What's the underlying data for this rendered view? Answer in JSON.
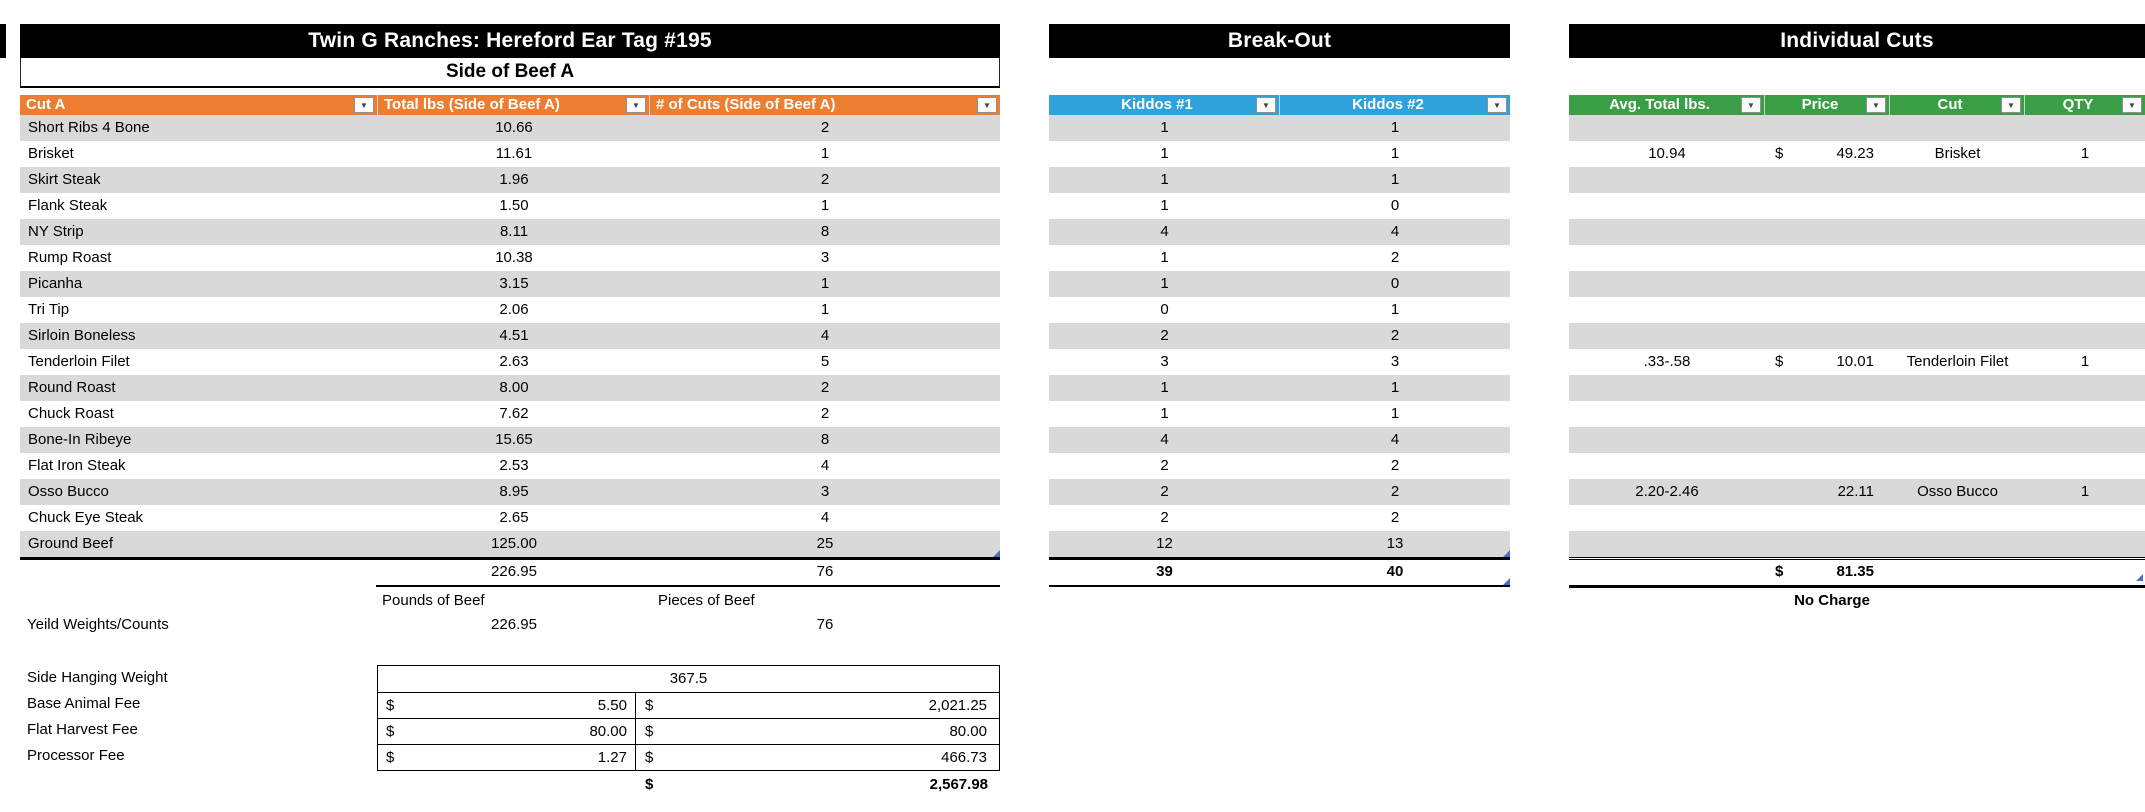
{
  "colors": {
    "header_orange": "#ED7D31",
    "header_blue": "#2FA2DC",
    "header_green": "#3B9E46",
    "stripe": "#D9D9D9",
    "title_bg": "#000000",
    "handle_blue": "#4472C4"
  },
  "icons": {
    "filter_dropdown": "▼"
  },
  "side_a": {
    "title": "Twin G Ranches: Hereford Ear Tag #195",
    "subtitle": "Side of Beef A",
    "columns": [
      "Cut A",
      "Total lbs (Side of Beef A)",
      "# of Cuts (Side of Beef A)"
    ],
    "rows": [
      {
        "cut": "Short Ribs 4 Bone",
        "lbs": "10.66",
        "count": "2"
      },
      {
        "cut": "Brisket",
        "lbs": "11.61",
        "count": "1"
      },
      {
        "cut": "Skirt Steak",
        "lbs": "1.96",
        "count": "2"
      },
      {
        "cut": "Flank Steak",
        "lbs": "1.50",
        "count": "1"
      },
      {
        "cut": "NY Strip",
        "lbs": "8.11",
        "count": "8"
      },
      {
        "cut": "Rump Roast",
        "lbs": "10.38",
        "count": "3"
      },
      {
        "cut": "Picanha",
        "lbs": "3.15",
        "count": "1"
      },
      {
        "cut": "Tri Tip",
        "lbs": "2.06",
        "count": "1"
      },
      {
        "cut": "Sirloin Boneless",
        "lbs": "4.51",
        "count": "4"
      },
      {
        "cut": "Tenderloin Filet",
        "lbs": "2.63",
        "count": "5"
      },
      {
        "cut": "Round Roast",
        "lbs": "8.00",
        "count": "2"
      },
      {
        "cut": "Chuck Roast",
        "lbs": "7.62",
        "count": "2"
      },
      {
        "cut": "Bone-In Ribeye",
        "lbs": "15.65",
        "count": "8"
      },
      {
        "cut": "Flat Iron Steak",
        "lbs": "2.53",
        "count": "4"
      },
      {
        "cut": "Osso Bucco",
        "lbs": "8.95",
        "count": "3"
      },
      {
        "cut": "Chuck Eye Steak",
        "lbs": "2.65",
        "count": "4"
      },
      {
        "cut": "Ground Beef",
        "lbs": "125.00",
        "count": "25"
      }
    ],
    "total_lbs": "226.95",
    "total_count": "76",
    "footer": {
      "pounds_label": "Pounds of Beef",
      "pieces_label": "Pieces of Beef",
      "yield_label": "Yeild Weights/Counts",
      "yield_pounds": "226.95",
      "yield_pieces": "76"
    }
  },
  "break_out": {
    "title": "Break-Out",
    "columns": [
      "Kiddos #1",
      "Kiddos #2"
    ],
    "rows": [
      [
        "1",
        "1"
      ],
      [
        "1",
        "1"
      ],
      [
        "1",
        "1"
      ],
      [
        "1",
        "0"
      ],
      [
        "4",
        "4"
      ],
      [
        "1",
        "2"
      ],
      [
        "1",
        "0"
      ],
      [
        "0",
        "1"
      ],
      [
        "2",
        "2"
      ],
      [
        "3",
        "3"
      ],
      [
        "1",
        "1"
      ],
      [
        "1",
        "1"
      ],
      [
        "4",
        "4"
      ],
      [
        "2",
        "2"
      ],
      [
        "2",
        "2"
      ],
      [
        "2",
        "2"
      ],
      [
        "12",
        "13"
      ]
    ],
    "totals": [
      "39",
      "40"
    ]
  },
  "individual_cuts": {
    "title": "Individual Cuts",
    "columns": [
      "Avg. Total lbs.",
      "Price",
      "Cut",
      "QTY"
    ],
    "row_count": 17,
    "entries": [
      {
        "row": 2,
        "avg": "10.94",
        "currency": "$",
        "price": "49.23",
        "cut": "Brisket",
        "qty": "1"
      },
      {
        "row": 10,
        "avg": ".33-.58",
        "currency": "$",
        "price": "10.01",
        "cut": "Tenderloin Filet",
        "qty": "1"
      },
      {
        "row": 15,
        "avg": "2.20-2.46",
        "currency": "",
        "price": "22.11",
        "cut": "Osso Bucco",
        "qty": "1"
      }
    ],
    "total_currency": "$",
    "total_amount": "81.35",
    "footnote": "No Charge"
  },
  "fees": {
    "hanging_label": "Side Hanging Weight",
    "hanging_weight": "367.5",
    "rows": [
      {
        "label": "Base Animal Fee",
        "rate_currency": "$",
        "rate": "5.50",
        "amount_currency": "$",
        "amount": "2,021.25"
      },
      {
        "label": "Flat Harvest Fee",
        "rate_currency": "$",
        "rate": "80.00",
        "amount_currency": "$",
        "amount": "80.00"
      },
      {
        "label": "Processor Fee",
        "rate_currency": "$",
        "rate": "1.27",
        "amount_currency": "$",
        "amount": "466.73"
      }
    ],
    "total_currency": "$",
    "total": "2,567.98"
  }
}
